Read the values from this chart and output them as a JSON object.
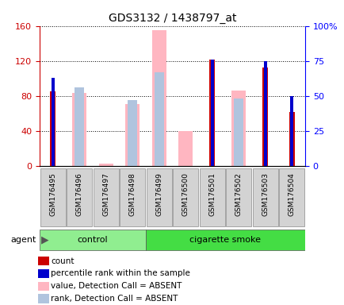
{
  "title": "GDS3132 / 1438797_at",
  "samples": [
    "GSM176495",
    "GSM176496",
    "GSM176497",
    "GSM176498",
    "GSM176499",
    "GSM176500",
    "GSM176501",
    "GSM176502",
    "GSM176503",
    "GSM176504"
  ],
  "groups": [
    "control",
    "control",
    "control",
    "control",
    "cigarette smoke",
    "cigarette smoke",
    "cigarette smoke",
    "cigarette smoke",
    "cigarette smoke",
    "cigarette smoke"
  ],
  "count_values": [
    85,
    0,
    0,
    0,
    0,
    0,
    122,
    0,
    113,
    62
  ],
  "percentile_rank_values": [
    63,
    0,
    0,
    0,
    0,
    0,
    76,
    0,
    75,
    50
  ],
  "absent_value_values": [
    0,
    84,
    3,
    71,
    155,
    40,
    0,
    86,
    0,
    0
  ],
  "absent_rank_values": [
    0,
    56,
    0,
    47,
    67,
    0,
    0,
    48,
    0,
    0
  ],
  "ylim_left": [
    0,
    160
  ],
  "ylim_right": [
    0,
    100
  ],
  "yticks_left": [
    0,
    40,
    80,
    120,
    160
  ],
  "yticks_right": [
    0,
    25,
    50,
    75,
    100
  ],
  "yticklabels_right": [
    "0",
    "25",
    "50",
    "75",
    "100%"
  ],
  "color_count": "#cc0000",
  "color_percentile": "#0000cc",
  "color_absent_value": "#ffb6c1",
  "color_absent_rank": "#b0c4de",
  "color_control": "#90ee90",
  "color_smoke": "#44dd44",
  "legend_items": [
    {
      "label": "count",
      "color": "#cc0000"
    },
    {
      "label": "percentile rank within the sample",
      "color": "#0000cc"
    },
    {
      "label": "value, Detection Call = ABSENT",
      "color": "#ffb6c1"
    },
    {
      "label": "rank, Detection Call = ABSENT",
      "color": "#b0c4de"
    }
  ]
}
